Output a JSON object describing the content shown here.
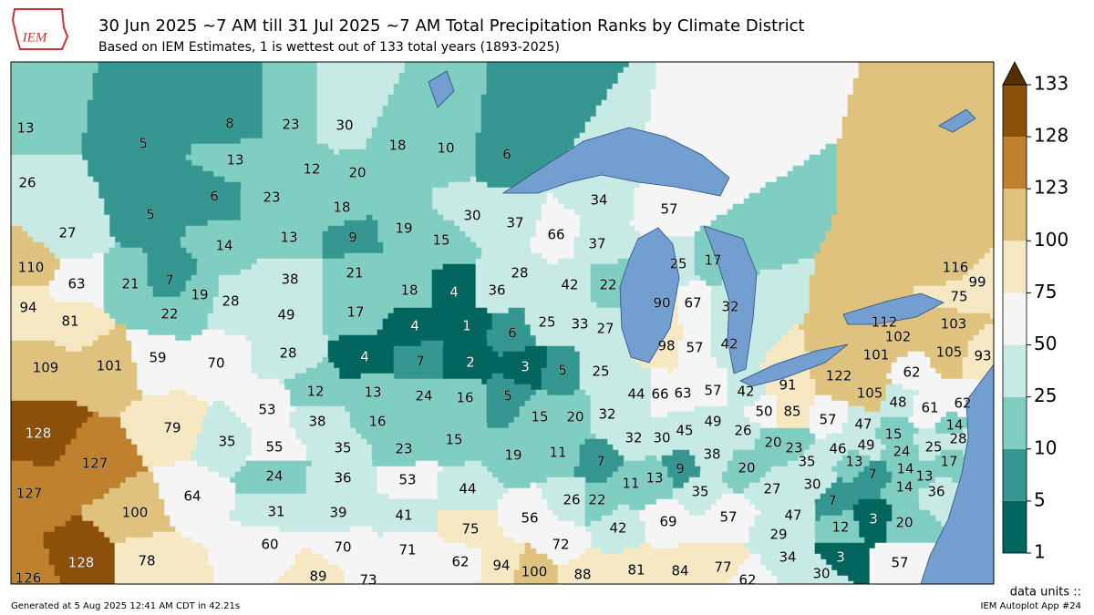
{
  "header": {
    "title": "30 Jun 2025 ~7 AM till 31 Jul 2025 ~7 AM Total Precipitation Ranks by Climate District",
    "subtitle": "Based on IEM Estimates, 1 is wettest out of 133 total years (1893-2025)",
    "logo": "IEM"
  },
  "map": {
    "district_ranks": [
      13,
      5,
      26,
      5,
      27,
      8,
      23,
      30,
      13,
      12,
      20,
      6,
      23,
      18,
      18,
      10,
      6,
      34,
      57,
      30,
      37,
      19,
      15,
      66,
      37,
      14,
      13,
      9,
      110,
      63,
      21,
      7,
      22,
      38,
      21,
      28,
      42,
      22,
      25,
      17,
      116,
      99,
      75,
      19,
      28,
      18,
      4,
      36,
      90,
      67,
      32,
      94,
      81,
      49,
      17,
      4,
      1,
      6,
      25,
      33,
      27,
      112,
      102,
      103,
      59,
      109,
      101,
      70,
      28,
      4,
      7,
      2,
      3,
      5,
      25,
      98,
      57,
      42,
      101,
      105,
      93,
      122,
      62,
      12,
      13,
      24,
      16,
      5,
      44,
      66,
      63,
      57,
      42,
      91,
      105,
      48,
      61,
      62,
      53,
      38,
      16,
      15,
      20,
      32,
      50,
      85,
      57,
      47,
      14,
      15,
      128,
      79,
      49,
      26,
      30,
      32,
      45,
      28,
      35,
      55,
      35,
      23,
      15,
      11,
      20,
      23,
      46,
      49,
      24,
      25,
      17,
      7,
      38,
      19,
      127,
      13,
      24,
      36,
      53,
      20,
      35,
      14,
      13,
      9,
      44,
      11,
      13,
      7,
      30,
      27,
      14,
      36,
      127,
      26,
      22,
      35,
      7,
      64,
      100,
      56,
      47,
      20,
      3,
      31,
      39,
      41,
      75,
      42,
      69,
      57,
      12,
      29,
      60,
      70,
      71,
      72,
      34,
      3,
      57,
      62,
      94,
      100,
      88,
      81,
      84,
      77,
      30,
      126,
      128,
      78,
      89,
      73,
      62
    ],
    "water_color": "#729fcf"
  },
  "colorbar": {
    "ticks": [
      1,
      5,
      10,
      25,
      50,
      75,
      100,
      123,
      128,
      133
    ],
    "colors": [
      "#01665e",
      "#35978f",
      "#80cdc1",
      "#c7eae5",
      "#f5f5f5",
      "#f6e8c3",
      "#dfc27d",
      "#bf812d",
      "#8c510a"
    ],
    "over_color": "#543005",
    "units_label": "data units ::"
  },
  "footer": {
    "left": "Generated at 5 Aug 2025 12:41 AM CDT in 42.21s",
    "right": "IEM Autoplot App #24"
  }
}
